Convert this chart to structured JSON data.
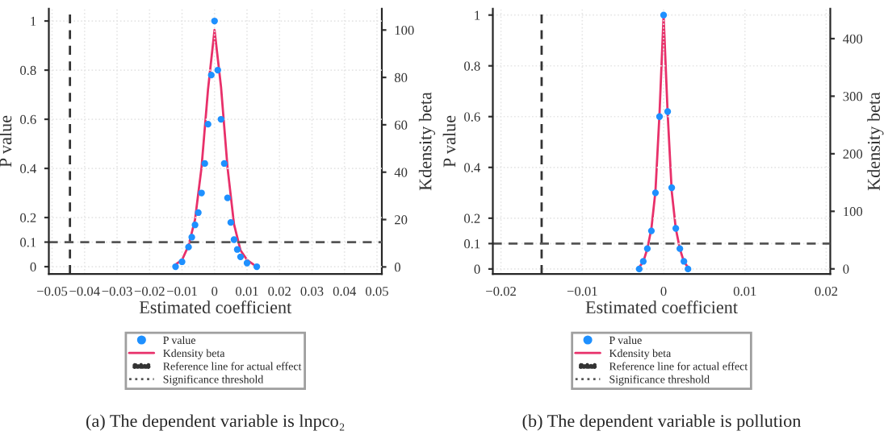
{
  "chart_data": [
    {
      "type": "scatter",
      "title": "(a) The dependent variable is lnpco₂",
      "xlabel": "Estimated coefficient",
      "ylabel": "P value",
      "y2label": "Kdensity beta",
      "xlim": [
        -0.051,
        0.0515
      ],
      "xticks": [
        {
          "value": -0.05,
          "label": "−0.05"
        },
        {
          "value": -0.04,
          "label": "−0.04"
        },
        {
          "value": -0.03,
          "label": "−0.03"
        },
        {
          "value": -0.02,
          "label": "−0.02"
        },
        {
          "value": -0.01,
          "label": "−0.01"
        },
        0,
        0.01,
        0.02,
        0.03,
        0.04,
        0.05
      ],
      "ylim": [
        -0.03,
        1.05
      ],
      "yticks": [
        0,
        0.1,
        0.2,
        0.4,
        0.6,
        0.8,
        1
      ],
      "y2lim": [
        -3,
        109
      ],
      "y2ticks": [
        0,
        20,
        40,
        60,
        80,
        100
      ],
      "grid": true,
      "legend": "bottom",
      "series": [
        {
          "name": "P value",
          "marker": "circle",
          "color": "#1e90ff",
          "x": [
            -0.012,
            -0.01,
            -0.008,
            -0.007,
            -0.006,
            -0.005,
            -0.004,
            -0.003,
            -0.002,
            -0.001,
            0,
            0.001,
            0.002,
            0.003,
            0.004,
            0.005,
            0.006,
            0.007,
            0.008,
            0.01,
            0.013
          ],
          "values": [
            0,
            0.02,
            0.08,
            0.12,
            0.17,
            0.22,
            0.3,
            0.42,
            0.58,
            0.78,
            1,
            0.8,
            0.6,
            0.42,
            0.28,
            0.18,
            0.11,
            0.07,
            0.04,
            0.015,
            0
          ]
        },
        {
          "name": "Kdensity beta",
          "type": "line",
          "axis": "y2",
          "color": "#e8306a",
          "x": [
            -0.012,
            -0.01,
            -0.008,
            -0.006,
            -0.004,
            -0.002,
            0,
            0.002,
            0.004,
            0.006,
            0.008,
            0.01,
            0.012
          ],
          "values": [
            1,
            3,
            9,
            20,
            42,
            75,
            100,
            76,
            42,
            18,
            7,
            3,
            1
          ]
        }
      ],
      "ref_lines": [
        {
          "axis": "x",
          "value": -0.0445,
          "label": "Reference line for actual effect",
          "line_style": "dashed",
          "color": "#333333"
        },
        {
          "axis": "y",
          "value": 0.1,
          "label": "Significance threshold",
          "line_style": "dashed",
          "color": "#555555"
        }
      ]
    },
    {
      "type": "scatter",
      "title": "(b) The dependent variable is pollution",
      "xlabel": "Estimated coefficient",
      "ylabel": "P value",
      "y2label": "Kdensity beta",
      "xlim": [
        -0.021,
        0.0205
      ],
      "xticks": [
        {
          "value": -0.02,
          "label": "−0.02"
        },
        {
          "value": -0.01,
          "label": "−0.01"
        },
        0,
        0.01,
        0.02
      ],
      "ylim": [
        -0.02,
        1.025
      ],
      "yticks": [
        0,
        0.1,
        0.2,
        0.4,
        0.6,
        0.8,
        1
      ],
      "y2lim": [
        -9,
        452
      ],
      "y2ticks": [
        0,
        100,
        200,
        300,
        400
      ],
      "grid": true,
      "legend": "bottom",
      "series": [
        {
          "name": "P value",
          "marker": "circle",
          "color": "#1e90ff",
          "x": [
            -0.003,
            -0.0025,
            -0.002,
            -0.0015,
            -0.001,
            -0.0005,
            0,
            0.0005,
            0.001,
            0.0015,
            0.002,
            0.0025,
            0.003
          ],
          "values": [
            0,
            0.03,
            0.08,
            0.15,
            0.3,
            0.6,
            1,
            0.62,
            0.32,
            0.16,
            0.08,
            0.03,
            0
          ]
        },
        {
          "name": "Kdensity beta",
          "type": "line",
          "axis": "y2",
          "color": "#e8306a",
          "x": [
            -0.003,
            -0.0025,
            -0.002,
            -0.0015,
            -0.001,
            -0.0005,
            0,
            0.0005,
            0.001,
            0.0015,
            0.002,
            0.0025,
            0.003
          ],
          "values": [
            3,
            12,
            35,
            70,
            135,
            270,
            440,
            270,
            135,
            70,
            35,
            12,
            3
          ]
        }
      ],
      "ref_lines": [
        {
          "axis": "x",
          "value": -0.015,
          "label": "Reference line for actual effect",
          "line_style": "dashed",
          "color": "#333333"
        },
        {
          "axis": "y",
          "value": 0.1,
          "label": "Significance threshold",
          "line_style": "dashed",
          "color": "#555555"
        }
      ]
    }
  ]
}
